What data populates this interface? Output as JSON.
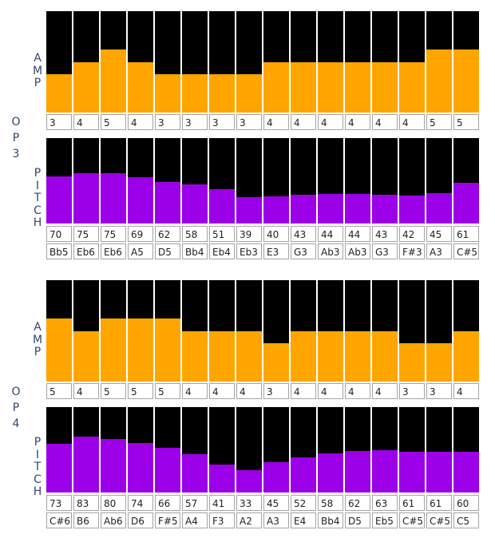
{
  "operators": [
    {
      "label": "OP3",
      "amp_label": "AMP",
      "pitch_label": "PITCH",
      "amp_max": 8,
      "pitch_max": 127,
      "amp": [
        3,
        4,
        5,
        4,
        3,
        3,
        3,
        3,
        4,
        4,
        4,
        4,
        4,
        4,
        5,
        5
      ],
      "pitch": [
        70,
        75,
        75,
        69,
        62,
        58,
        51,
        39,
        40,
        43,
        44,
        44,
        43,
        42,
        45,
        61
      ],
      "notes": [
        "Bb5",
        "Eb6",
        "Eb6",
        "A5",
        "D5",
        "Bb4",
        "Eb4",
        "Eb3",
        "E3",
        "G3",
        "Ab3",
        "Ab3",
        "G3",
        "F#3",
        "A3",
        "C#5"
      ]
    },
    {
      "label": "OP4",
      "amp_label": "AMP",
      "pitch_label": "PITCH",
      "amp_max": 8,
      "pitch_max": 127,
      "amp": [
        5,
        4,
        5,
        5,
        5,
        4,
        4,
        4,
        3,
        4,
        4,
        4,
        4,
        3,
        3,
        4
      ],
      "pitch": [
        73,
        83,
        80,
        74,
        66,
        57,
        41,
        33,
        45,
        52,
        58,
        62,
        63,
        61,
        61,
        60
      ],
      "notes": [
        "C#6",
        "B6",
        "Ab6",
        "D6",
        "F#5",
        "A4",
        "F3",
        "A2",
        "A3",
        "E4",
        "Bb4",
        "D5",
        "Eb5",
        "C#5",
        "C#5",
        "C5"
      ]
    }
  ],
  "colors": {
    "amp": "#ffa500",
    "pitch": "#9b00e8",
    "track": "#000000"
  }
}
